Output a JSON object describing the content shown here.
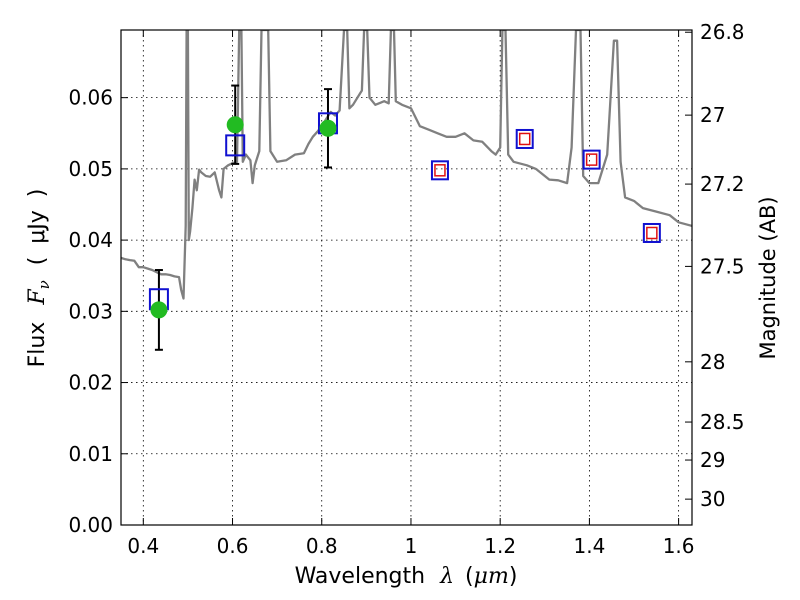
{
  "chart_data": {
    "type": "scatter",
    "xlabel_text": "Wavelength",
    "xlabel_symbol": "λ",
    "xlabel_unit_open": "(",
    "xlabel_unit": "μm",
    "xlabel_unit_close": ")",
    "ylabel_text": "Flux",
    "ylabel_symbol_main": "F",
    "ylabel_symbol_sub": "ν",
    "ylabel_unit_open": "(",
    "ylabel_unit": "μJy",
    "ylabel_unit_close": ")",
    "y2label": "Magnitude (AB)",
    "xlim": [
      0.35,
      1.63
    ],
    "ylim": [
      0.0,
      0.0695
    ],
    "grid": true,
    "x_ticks": [
      {
        "v": 0.4,
        "label": "0.4"
      },
      {
        "v": 0.6,
        "label": "0.6"
      },
      {
        "v": 0.8,
        "label": "0.8"
      },
      {
        "v": 1.0,
        "label": "1"
      },
      {
        "v": 1.2,
        "label": "1.2"
      },
      {
        "v": 1.4,
        "label": "1.4"
      },
      {
        "v": 1.6,
        "label": "1.6"
      }
    ],
    "y_ticks": [
      {
        "v": 0.0,
        "label": "0.00"
      },
      {
        "v": 0.01,
        "label": "0.01"
      },
      {
        "v": 0.02,
        "label": "0.02"
      },
      {
        "v": 0.03,
        "label": "0.03"
      },
      {
        "v": 0.04,
        "label": "0.04"
      },
      {
        "v": 0.05,
        "label": "0.05"
      },
      {
        "v": 0.06,
        "label": "0.06"
      }
    ],
    "mag_ticks": [
      {
        "mag": 26.8,
        "label": "26.8"
      },
      {
        "mag": 27.0,
        "label": "27"
      },
      {
        "mag": 27.2,
        "label": "27.2"
      },
      {
        "mag": 27.5,
        "label": "27.5"
      },
      {
        "mag": 28.0,
        "label": "28"
      },
      {
        "mag": 28.5,
        "label": "28.5"
      },
      {
        "mag": 29.0,
        "label": "29"
      },
      {
        "mag": 30.0,
        "label": "30"
      }
    ],
    "colors": {
      "spectrum": "#808080",
      "observed": "#22bb22",
      "model_square": "#1010d0",
      "red_square": "#e01010",
      "errorbar": "#000000"
    },
    "series": [
      {
        "name": "spectrum",
        "kind": "line",
        "points": [
          [
            0.35,
            0.0375
          ],
          [
            0.36,
            0.0373
          ],
          [
            0.37,
            0.0372
          ],
          [
            0.38,
            0.0371
          ],
          [
            0.39,
            0.0362
          ],
          [
            0.4,
            0.0362
          ],
          [
            0.41,
            0.036
          ],
          [
            0.42,
            0.0358
          ],
          [
            0.43,
            0.0355
          ],
          [
            0.44,
            0.0352
          ],
          [
            0.45,
            0.0352
          ],
          [
            0.46,
            0.0351
          ],
          [
            0.47,
            0.0349
          ],
          [
            0.48,
            0.0348
          ],
          [
            0.485,
            0.033
          ],
          [
            0.49,
            0.0318
          ],
          [
            0.495,
            0.042
          ],
          [
            0.497,
            0.0695
          ],
          [
            0.5,
            0.0695
          ],
          [
            0.502,
            0.04
          ],
          [
            0.505,
            0.0412
          ],
          [
            0.51,
            0.0445
          ],
          [
            0.515,
            0.0485
          ],
          [
            0.52,
            0.047
          ],
          [
            0.525,
            0.0499
          ],
          [
            0.53,
            0.0495
          ],
          [
            0.54,
            0.049
          ],
          [
            0.55,
            0.0489
          ],
          [
            0.56,
            0.0495
          ],
          [
            0.57,
            0.047
          ],
          [
            0.575,
            0.046
          ],
          [
            0.58,
            0.05
          ],
          [
            0.59,
            0.0505
          ],
          [
            0.6,
            0.0508
          ],
          [
            0.61,
            0.051
          ],
          [
            0.615,
            0.0695
          ],
          [
            0.62,
            0.0695
          ],
          [
            0.623,
            0.051
          ],
          [
            0.63,
            0.052
          ],
          [
            0.64,
            0.0512
          ],
          [
            0.645,
            0.048
          ],
          [
            0.65,
            0.0505
          ],
          [
            0.66,
            0.0525
          ],
          [
            0.665,
            0.0695
          ],
          [
            0.68,
            0.0695
          ],
          [
            0.685,
            0.0525
          ],
          [
            0.7,
            0.051
          ],
          [
            0.72,
            0.0512
          ],
          [
            0.74,
            0.052
          ],
          [
            0.76,
            0.0522
          ],
          [
            0.77,
            0.0535
          ],
          [
            0.78,
            0.0545
          ],
          [
            0.79,
            0.0552
          ],
          [
            0.8,
            0.056
          ],
          [
            0.81,
            0.057
          ],
          [
            0.82,
            0.058
          ],
          [
            0.83,
            0.0575
          ],
          [
            0.84,
            0.0582
          ],
          [
            0.85,
            0.0695
          ],
          [
            0.857,
            0.0695
          ],
          [
            0.862,
            0.0585
          ],
          [
            0.87,
            0.059
          ],
          [
            0.88,
            0.06
          ],
          [
            0.89,
            0.061
          ],
          [
            0.895,
            0.0695
          ],
          [
            0.902,
            0.0695
          ],
          [
            0.907,
            0.06
          ],
          [
            0.92,
            0.059
          ],
          [
            0.94,
            0.0595
          ],
          [
            0.95,
            0.0592
          ],
          [
            0.955,
            0.0695
          ],
          [
            0.962,
            0.0695
          ],
          [
            0.966,
            0.0595
          ],
          [
            0.98,
            0.059
          ],
          [
            1.0,
            0.0585
          ],
          [
            1.02,
            0.056
          ],
          [
            1.04,
            0.0555
          ],
          [
            1.06,
            0.055
          ],
          [
            1.08,
            0.0545
          ],
          [
            1.1,
            0.0545
          ],
          [
            1.12,
            0.055
          ],
          [
            1.14,
            0.054
          ],
          [
            1.16,
            0.0538
          ],
          [
            1.18,
            0.0525
          ],
          [
            1.19,
            0.052
          ],
          [
            1.2,
            0.053
          ],
          [
            1.205,
            0.0695
          ],
          [
            1.212,
            0.0695
          ],
          [
            1.218,
            0.052
          ],
          [
            1.23,
            0.051
          ],
          [
            1.26,
            0.0505
          ],
          [
            1.28,
            0.05
          ],
          [
            1.3,
            0.049
          ],
          [
            1.31,
            0.0485
          ],
          [
            1.33,
            0.0484
          ],
          [
            1.35,
            0.048
          ],
          [
            1.36,
            0.053
          ],
          [
            1.37,
            0.0695
          ],
          [
            1.38,
            0.0695
          ],
          [
            1.386,
            0.049
          ],
          [
            1.4,
            0.048
          ],
          [
            1.42,
            0.048
          ],
          [
            1.44,
            0.052
          ],
          [
            1.455,
            0.068
          ],
          [
            1.462,
            0.068
          ],
          [
            1.47,
            0.051
          ],
          [
            1.48,
            0.046
          ],
          [
            1.5,
            0.0455
          ],
          [
            1.52,
            0.0445
          ],
          [
            1.55,
            0.044
          ],
          [
            1.58,
            0.0435
          ],
          [
            1.6,
            0.0425
          ],
          [
            1.63,
            0.042
          ]
        ]
      },
      {
        "name": "observed",
        "kind": "points-errorbars",
        "points": [
          {
            "x": 0.435,
            "y": 0.0302,
            "err": 0.0056
          },
          {
            "x": 0.606,
            "y": 0.0562,
            "err": 0.0055
          },
          {
            "x": 0.814,
            "y": 0.0557,
            "err": 0.0055
          }
        ]
      },
      {
        "name": "model-large",
        "kind": "squares",
        "size": "large",
        "points": [
          {
            "x": 0.435,
            "y": 0.0317
          },
          {
            "x": 0.606,
            "y": 0.0533
          },
          {
            "x": 0.814,
            "y": 0.0564
          }
        ]
      },
      {
        "name": "model-small",
        "kind": "squares-with-red",
        "size": "small",
        "points": [
          {
            "x": 1.065,
            "y": 0.0498
          },
          {
            "x": 1.255,
            "y": 0.0542
          },
          {
            "x": 1.405,
            "y": 0.0513
          },
          {
            "x": 1.54,
            "y": 0.041
          }
        ]
      }
    ]
  }
}
